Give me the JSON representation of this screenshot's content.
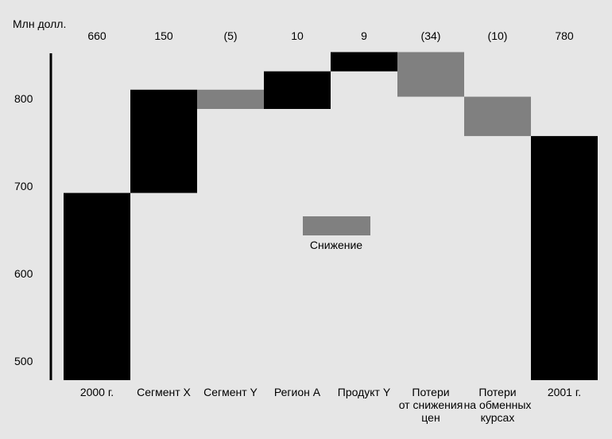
{
  "chart_data": {
    "type": "waterfall",
    "unit_label": "Млн долл.",
    "yticks": [
      500,
      600,
      700,
      800
    ],
    "ylim": [
      478,
      853
    ],
    "grid": false,
    "colors": {
      "increase": "#000000",
      "decrease": "#808080",
      "total": "#000000",
      "background": "#e6e6e6"
    },
    "steps": [
      {
        "category": [
          "2000 г."
        ],
        "value": 660,
        "value_label": "660",
        "kind": "total",
        "start": 478,
        "end": 692
      },
      {
        "category": [
          "Сегмент X"
        ],
        "value": 150,
        "value_label": "150",
        "kind": "increase",
        "start": 692,
        "end": 810
      },
      {
        "category": [
          "Сегмент Y"
        ],
        "value": -5,
        "value_label": "(5)",
        "kind": "decrease",
        "start": 810,
        "end": 788
      },
      {
        "category": [
          "Регион А"
        ],
        "value": 10,
        "value_label": "10",
        "kind": "increase",
        "start": 788,
        "end": 831
      },
      {
        "category": [
          "Продукт Y"
        ],
        "value": 9,
        "value_label": "9",
        "kind": "increase",
        "start": 831,
        "end": 853
      },
      {
        "category": [
          "Потери",
          "от снижения",
          "цен"
        ],
        "value": -34,
        "value_label": "(34)",
        "kind": "decrease",
        "start": 853,
        "end": 802
      },
      {
        "category": [
          "Потери",
          "на обменных",
          "курсах"
        ],
        "value": -10,
        "value_label": "(10)",
        "kind": "decrease",
        "start": 802,
        "end": 757
      },
      {
        "category": [
          "2001 г."
        ],
        "value": 780,
        "value_label": "780",
        "kind": "total",
        "start": 478,
        "end": 757
      }
    ],
    "legend": {
      "label": "Снижение",
      "color": "#808080"
    }
  }
}
